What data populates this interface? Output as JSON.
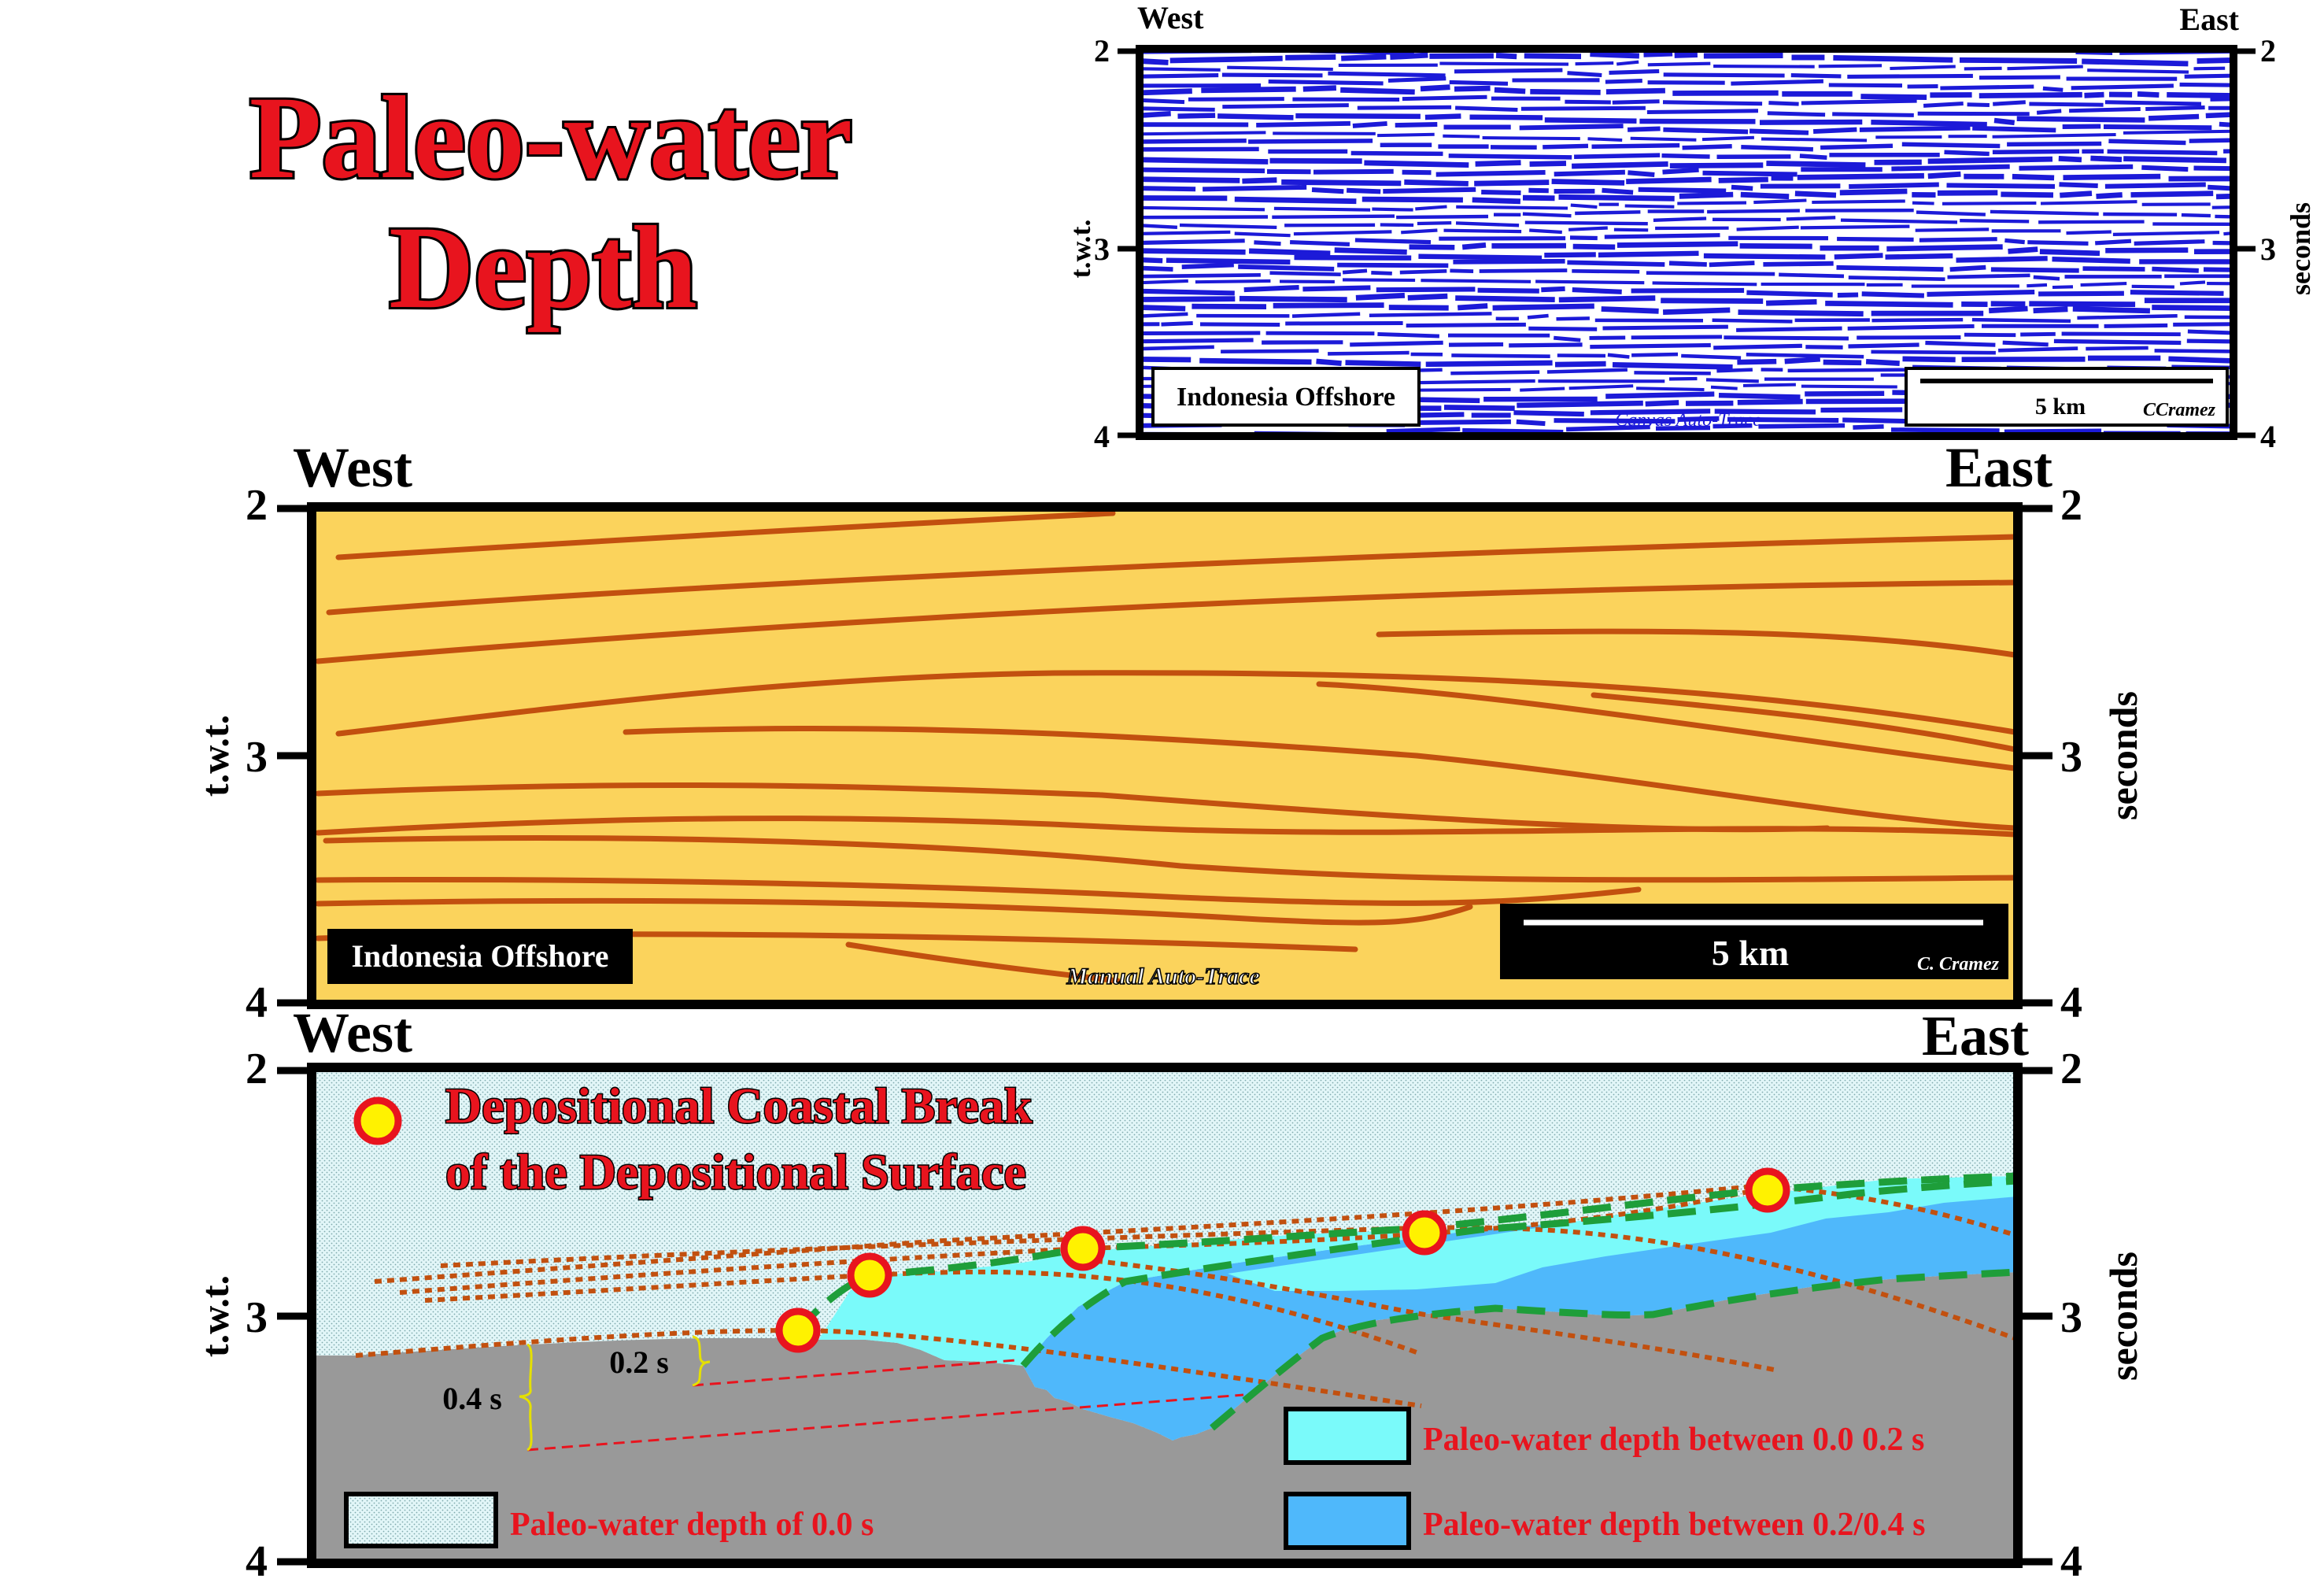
{
  "title": {
    "line1": "Paleo-water",
    "line2": "Depth"
  },
  "colors": {
    "title_fill": "#e8141e",
    "seismic_blue": "#1c1ad8",
    "interp_fill": "#fbd35c",
    "reflector": "#c2500f",
    "water": "#e2f6f8",
    "shallow": "#7afafa",
    "deep": "#4fb8fb",
    "substrate": "#999999",
    "marker_ring": "#e8141e",
    "marker_core": "#fff200",
    "dashed_green": "#1e9e3a",
    "label_red": "#e8141e"
  },
  "seismic_panel": {
    "west": "West",
    "east": "East",
    "y_left_ticks": [
      "2",
      "3",
      "4"
    ],
    "y_right_ticks": [
      "2",
      "3",
      "4"
    ],
    "y_left_label": "t.w.t.",
    "y_right_label": "seconds",
    "location": "Indonesia Offshore",
    "scale": "5 km",
    "credit": "CCramez",
    "watermark": "Canvas Auto-Trace"
  },
  "interp_panel": {
    "west": "West",
    "east": "East",
    "y_left_ticks": [
      "2",
      "3",
      "4"
    ],
    "y_right_ticks": [
      "2",
      "3",
      "4"
    ],
    "y_left_label": "t.w.t.",
    "y_right_label": "seconds",
    "location": "Indonesia Offshore",
    "scale": "5 km",
    "credit": "C. Cramez",
    "watermark": "Manual Auto-Trace"
  },
  "paleo_panel": {
    "west": "West",
    "east": "East",
    "y_left_ticks": [
      "2",
      "3",
      "4"
    ],
    "y_right_ticks": [
      "2",
      "3",
      "4"
    ],
    "y_left_label": "t.w.t.",
    "y_right_label": "seconds",
    "legend_title_1": "Depositional Coastal Break",
    "legend_title_2": "of the Depositional Surface",
    "label_02": "0.2 s",
    "label_04": "0.4 s",
    "legend_items": [
      {
        "label": "Paleo-water depth of 0.0 s",
        "swatch": "water"
      },
      {
        "label": "Paleo-water depth between 0.0 0.2 s",
        "swatch": "shallow"
      },
      {
        "label": "Paleo-water depth between 0.2/0.4 s",
        "swatch": "deep"
      }
    ]
  }
}
